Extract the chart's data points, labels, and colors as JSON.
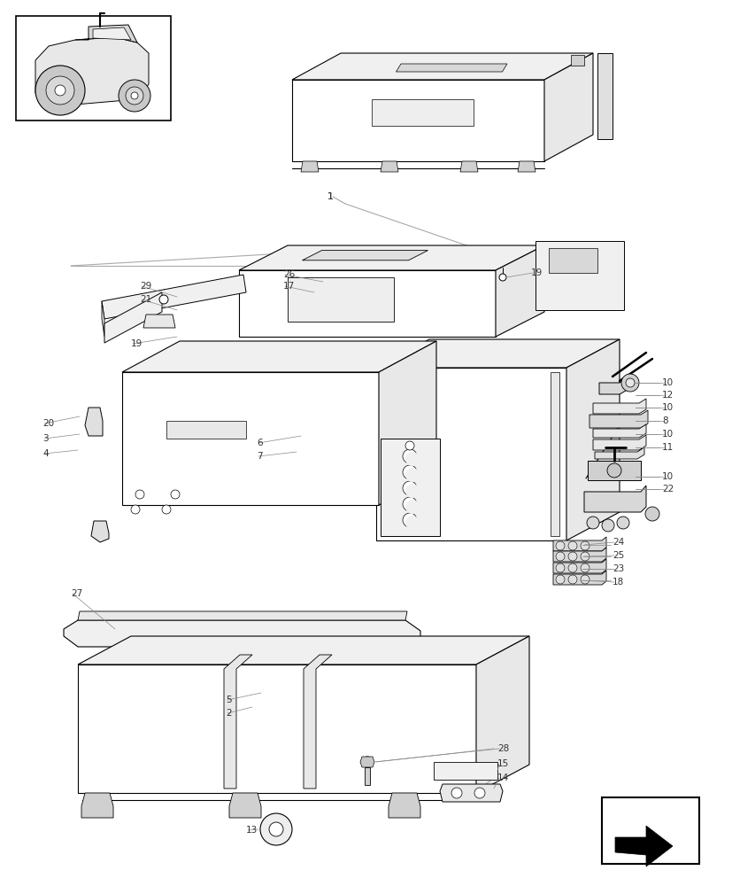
{
  "bg": "#ffffff",
  "lc": "#000000",
  "gc": "#cccccc",
  "fig_w": 8.28,
  "fig_h": 10.0,
  "dpi": 100
}
